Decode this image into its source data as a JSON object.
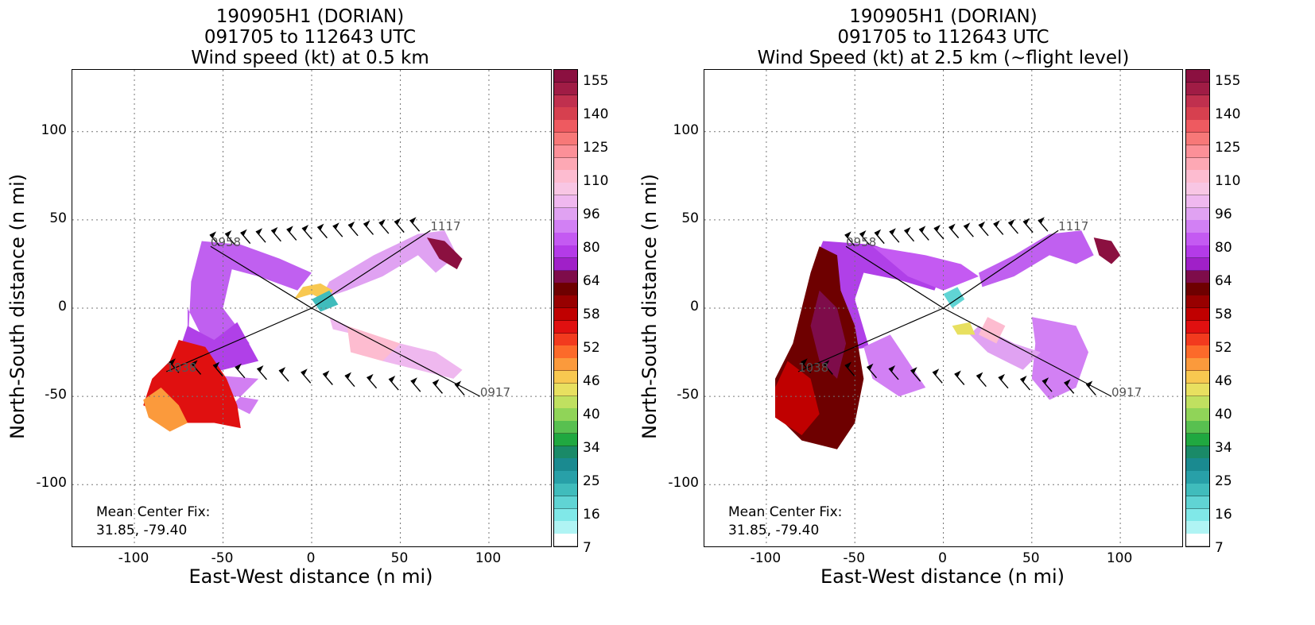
{
  "chart_data": [
    {
      "type": "heatmap",
      "title_lines": [
        "190905H1 (DORIAN)",
        "091705 to 112643 UTC",
        "Wind speed (kt) at 0.5 km"
      ],
      "xlabel": "East-West distance (n mi)",
      "ylabel": "North-South distance (n mi)",
      "xlim": [
        -135,
        135
      ],
      "ylim": [
        -135,
        135
      ],
      "xticks": [
        -100,
        -50,
        0,
        50,
        100
      ],
      "yticks": [
        100,
        50,
        0,
        -50,
        -100
      ],
      "grid": true,
      "annotation": [
        "Mean Center Fix:",
        "31.85, -79.40"
      ],
      "track_labels": [
        {
          "text": "0917",
          "x": 95,
          "y": -50
        },
        {
          "text": "1117",
          "x": 67,
          "y": 44
        },
        {
          "text": "0958",
          "x": -57,
          "y": 35
        },
        {
          "text": "1038",
          "x": -82,
          "y": -36
        }
      ],
      "colorbar_ticks": [
        "155",
        "140",
        "125",
        "110",
        "96",
        "80",
        "64",
        "58",
        "52",
        "46",
        "40",
        "34",
        "25",
        "16",
        "7"
      ]
    },
    {
      "type": "heatmap",
      "title_lines": [
        "190905H1 (DORIAN)",
        "091705 to 112643 UTC",
        "Wind Speed (kt) at 2.5 km (~flight level)"
      ],
      "xlabel": "East-West distance (n mi)",
      "ylabel": "North-South distance (n mi)",
      "xlim": [
        -135,
        135
      ],
      "ylim": [
        -135,
        135
      ],
      "xticks": [
        -100,
        -50,
        0,
        50,
        100
      ],
      "yticks": [
        100,
        50,
        0,
        -50,
        -100
      ],
      "grid": true,
      "annotation": [
        "Mean Center Fix:",
        "31.85, -79.40"
      ],
      "track_labels": [
        {
          "text": "0917",
          "x": 95,
          "y": -50
        },
        {
          "text": "1117",
          "x": 65,
          "y": 44
        },
        {
          "text": "0958",
          "x": -55,
          "y": 35
        },
        {
          "text": "1038",
          "x": -82,
          "y": -36
        }
      ],
      "colorbar_ticks": [
        "155",
        "140",
        "125",
        "110",
        "96",
        "80",
        "64",
        "58",
        "52",
        "46",
        "40",
        "34",
        "25",
        "16",
        "7"
      ]
    }
  ],
  "colorbar_colors": [
    "#8b1040",
    "#a01c45",
    "#c0304e",
    "#d6404f",
    "#ee5a60",
    "#f77878",
    "#fc9098",
    "#fda8b4",
    "#fdbcd0",
    "#f8c6e4",
    "#efb8ef",
    "#e0a2f2",
    "#d280f4",
    "#c45af2",
    "#b43be8",
    "#a020c8",
    "#7e0c4a",
    "#6e0000",
    "#980000",
    "#c00000",
    "#e01010",
    "#f23a1e",
    "#fc6a2a",
    "#fb9a3c",
    "#f8c850",
    "#e8e060",
    "#c0e060",
    "#90d458",
    "#58c050",
    "#20a840",
    "#1a8a68",
    "#1a8a90",
    "#28a0a8",
    "#40bcbc",
    "#60d4d4",
    "#80e8e8",
    "#b0f4f4",
    "#ffffff"
  ]
}
